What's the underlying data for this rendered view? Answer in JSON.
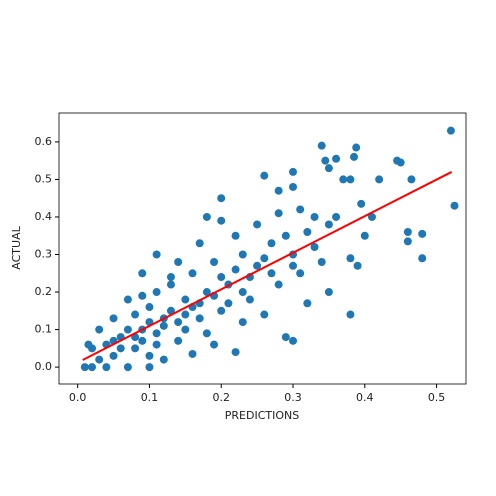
{
  "chart_data": {
    "type": "scatter",
    "xlabel": "PREDICTIONS",
    "ylabel": "ACTUAL",
    "xlim": [
      -0.026,
      0.541
    ],
    "ylim": [
      -0.045,
      0.677
    ],
    "xticks": [
      {
        "value": 0,
        "label": "0.0"
      },
      {
        "value": 0.1,
        "label": "0.1"
      },
      {
        "value": 0.2,
        "label": "0.2"
      },
      {
        "value": 0.3,
        "label": "0.3"
      },
      {
        "value": 0.4,
        "label": "0.4"
      },
      {
        "value": 0.5,
        "label": "0.5"
      }
    ],
    "yticks": [
      {
        "value": 0,
        "label": "0.0"
      },
      {
        "value": 0.1,
        "label": "0.1"
      },
      {
        "value": 0.2,
        "label": "0.2"
      },
      {
        "value": 0.3,
        "label": "0.3"
      },
      {
        "value": 0.4,
        "label": "0.4"
      },
      {
        "value": 0.5,
        "label": "0.5"
      },
      {
        "value": 0.6,
        "label": "0.6"
      }
    ],
    "grid": false,
    "series": [
      {
        "type": "scatter",
        "color": "#1f77b4",
        "x": [
          0.52,
          0.525,
          0.48,
          0.48,
          0.46,
          0.46,
          0.45,
          0.445,
          0.465,
          0.42,
          0.388,
          0.385,
          0.36,
          0.34,
          0.345,
          0.395,
          0.37,
          0.38,
          0.3,
          0.35,
          0.26,
          0.28,
          0.3,
          0.2,
          0.11,
          0.09,
          0.38,
          0.35,
          0.32,
          0.3,
          0.29,
          0.22,
          0.19,
          0.16,
          0.38,
          0.39,
          0.4,
          0.41,
          0.36,
          0.33,
          0.31,
          0.28,
          0.25,
          0.27,
          0.3,
          0.33,
          0.31,
          0.28,
          0.25,
          0.23,
          0.22,
          0.2,
          0.18,
          0.17,
          0.19,
          0.21,
          0.24,
          0.26,
          0.23,
          0.2,
          0.18,
          0.16,
          0.14,
          0.13,
          0.15,
          0.17,
          0.18,
          0.15,
          0.13,
          0.11,
          0.1,
          0.12,
          0.14,
          0.11,
          0.09,
          0.08,
          0.07,
          0.06,
          0.08,
          0.1,
          0.05,
          0.04,
          0.03,
          0.02,
          0.01,
          0.04,
          0.07,
          0.1,
          0.12,
          0.03,
          0.02,
          0.015,
          0.05,
          0.06,
          0.09,
          0.12,
          0.16,
          0.19,
          0.22,
          0.24,
          0.26,
          0.29,
          0.32,
          0.35,
          0.09,
          0.13,
          0.1,
          0.07,
          0.05,
          0.15,
          0.2,
          0.23,
          0.27,
          0.34,
          0.3,
          0.21,
          0.17,
          0.14,
          0.11,
          0.08
        ],
        "y": [
          0.63,
          0.43,
          0.29,
          0.355,
          0.36,
          0.335,
          0.545,
          0.55,
          0.5,
          0.5,
          0.585,
          0.56,
          0.555,
          0.59,
          0.55,
          0.435,
          0.5,
          0.5,
          0.52,
          0.53,
          0.51,
          0.47,
          0.48,
          0.45,
          0.3,
          0.25,
          0.14,
          0.2,
          0.17,
          0.07,
          0.08,
          0.04,
          0.06,
          0.035,
          0.29,
          0.27,
          0.35,
          0.4,
          0.4,
          0.4,
          0.42,
          0.41,
          0.38,
          0.33,
          0.3,
          0.32,
          0.25,
          0.22,
          0.27,
          0.3,
          0.35,
          0.39,
          0.4,
          0.33,
          0.28,
          0.22,
          0.18,
          0.14,
          0.12,
          0.15,
          0.2,
          0.25,
          0.28,
          0.22,
          0.18,
          0.13,
          0.09,
          0.1,
          0.15,
          0.2,
          0.16,
          0.11,
          0.07,
          0.06,
          0.1,
          0.14,
          0.18,
          0.08,
          0.05,
          0.03,
          0.03,
          0.06,
          0.02,
          0,
          0,
          0,
          0,
          0,
          0.02,
          0.1,
          0.05,
          0.06,
          0.13,
          0.05,
          0.07,
          0.13,
          0.16,
          0.19,
          0.26,
          0.24,
          0.29,
          0.35,
          0.36,
          0.38,
          0.19,
          0.24,
          0.12,
          0.1,
          0.07,
          0.14,
          0.24,
          0.2,
          0.25,
          0.28,
          0.27,
          0.17,
          0.17,
          0.12,
          0.09,
          0.08
        ]
      },
      {
        "type": "line",
        "color": "#ff0000",
        "x": [
          0.007,
          0.521
        ],
        "y": [
          0.019,
          0.52
        ]
      }
    ]
  }
}
